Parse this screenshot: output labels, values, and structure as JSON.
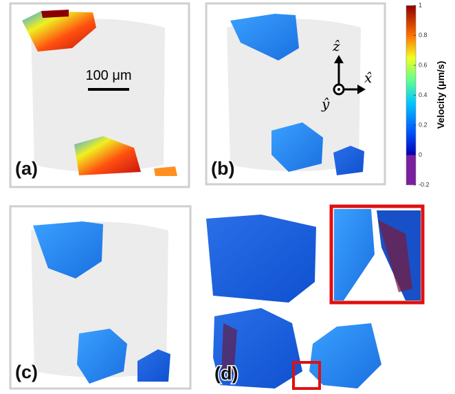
{
  "panels": [
    {
      "label": "(a)"
    },
    {
      "label": "(b)"
    },
    {
      "label": "(c)"
    },
    {
      "label": "(d)"
    }
  ],
  "scale_bar": {
    "label": "100 μm"
  },
  "axes": {
    "z": "ẑ",
    "x": "x̂",
    "y": "ŷ"
  },
  "colorbar": {
    "label": "Velocity (μm/s)",
    "lim": [
      -0.2,
      1
    ],
    "ticks": [
      1,
      0.8,
      0.6,
      0.4,
      0.2,
      0,
      -0.2
    ]
  }
}
